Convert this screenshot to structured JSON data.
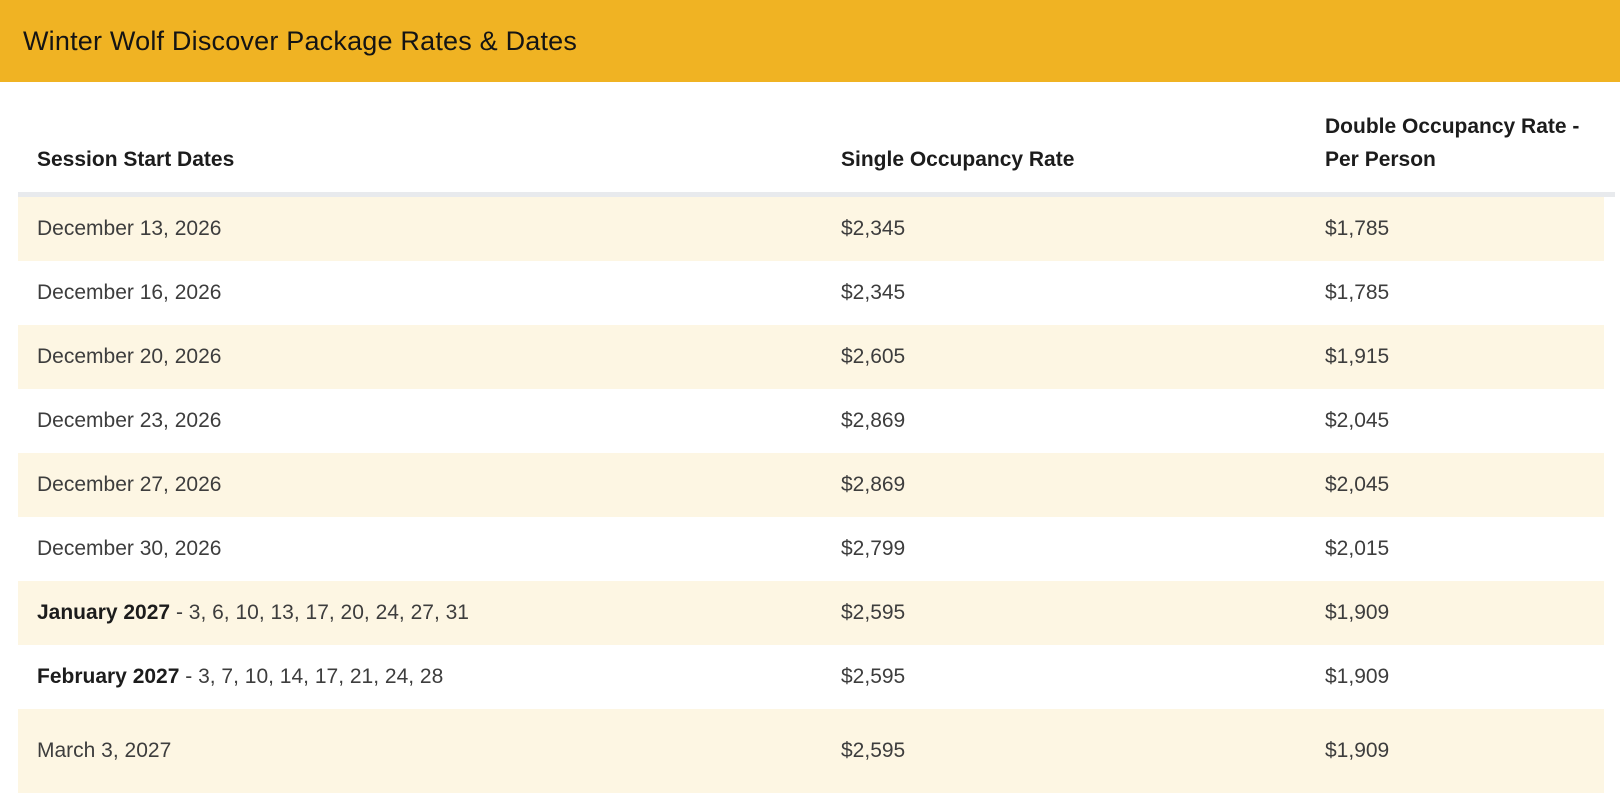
{
  "title_bar": {
    "title": "Winter Wolf Discover Package Rates & Dates"
  },
  "table": {
    "columns": [
      "Session Start Dates",
      "Single Occupancy Rate",
      "Double Occupancy Rate - Per Person"
    ],
    "rows": [
      {
        "session_prefix": "",
        "session": "December 13, 2026",
        "single_rate": "$2,345",
        "double_rate": "$1,785"
      },
      {
        "session_prefix": "",
        "session": "December 16, 2026",
        "single_rate": "$2,345",
        "double_rate": "$1,785"
      },
      {
        "session_prefix": "",
        "session": "December 20, 2026",
        "single_rate": "$2,605",
        "double_rate": "$1,915"
      },
      {
        "session_prefix": "",
        "session": "December 23, 2026",
        "single_rate": "$2,869",
        "double_rate": "$2,045"
      },
      {
        "session_prefix": "",
        "session": "December 27, 2026",
        "single_rate": "$2,869",
        "double_rate": "$2,045"
      },
      {
        "session_prefix": "",
        "session": "December 30, 2026",
        "single_rate": "$2,799",
        "double_rate": "$2,015"
      },
      {
        "session_prefix": "January 2027",
        "session": " - 3, 6, 10, 13, 17, 20, 24, 27, 31",
        "single_rate": "$2,595",
        "double_rate": "$1,909"
      },
      {
        "session_prefix": "February 2027",
        "session": " - 3, 7, 10, 14, 17, 21, 24, 28",
        "single_rate": "$2,595",
        "double_rate": "$1,909"
      },
      {
        "session_prefix": "",
        "session": "March 3, 2027",
        "single_rate": "$2,595",
        "double_rate": "$1,909"
      }
    ]
  },
  "colors": {
    "header_gold": "#F0B323",
    "row_stripe_cream": "#FDF6E3",
    "divider_gray": "#E8EAED",
    "text_dark": "#1C1C1C",
    "text_body": "#3D3D3D"
  }
}
